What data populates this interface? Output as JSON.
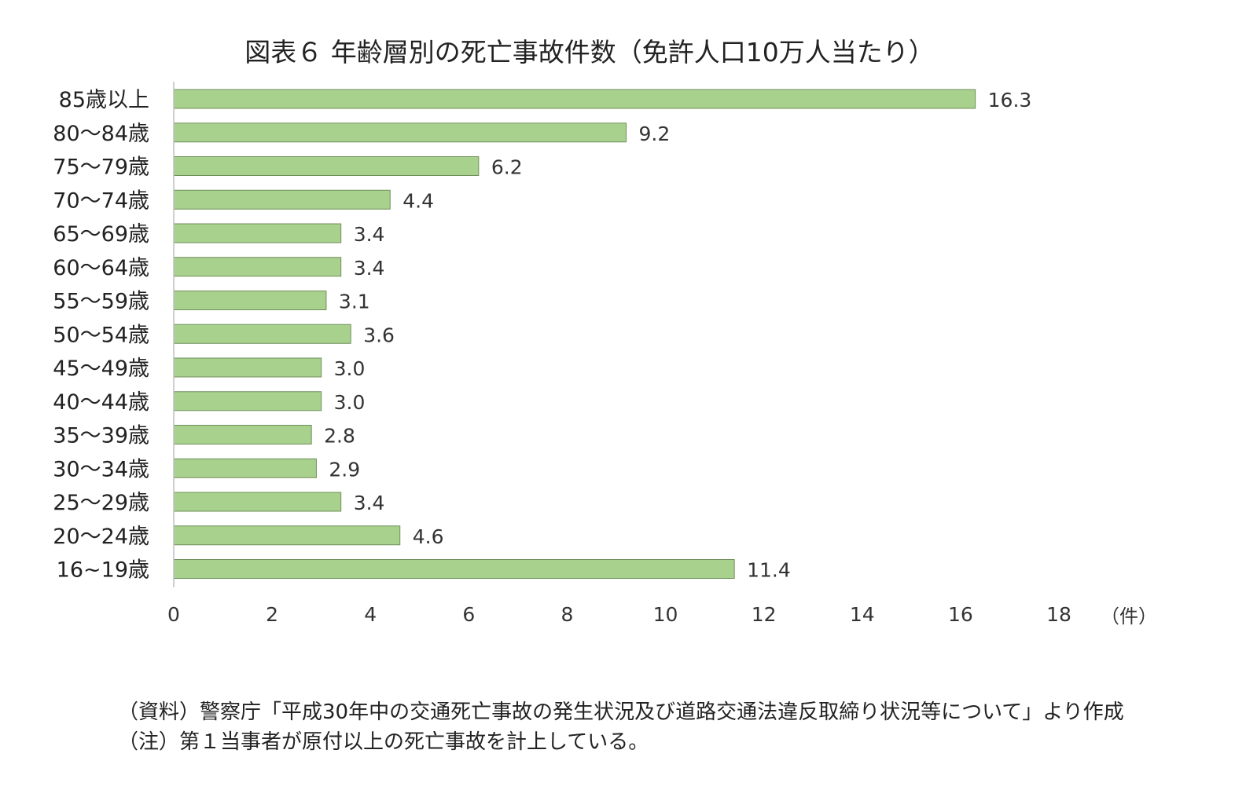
{
  "chart_data": {
    "type": "bar",
    "orientation": "horizontal",
    "title": "図表６ 年齢層別の死亡事故件数（免許人口10万人当たり）",
    "categories": [
      "85歳以上",
      "80～84歳",
      "75～79歳",
      "70～74歳",
      "65～69歳",
      "60～64歳",
      "55～59歳",
      "50～54歳",
      "45～49歳",
      "40～44歳",
      "35～39歳",
      "30～34歳",
      "25～29歳",
      "20～24歳",
      "16~19歳"
    ],
    "values": [
      16.3,
      9.2,
      6.2,
      4.4,
      3.4,
      3.4,
      3.1,
      3.6,
      3.0,
      3.0,
      2.8,
      2.9,
      3.4,
      4.6,
      11.4
    ],
    "value_labels": [
      "16.3",
      "9.2",
      "6.2",
      "4.4",
      "3.4",
      "3.4",
      "3.1",
      "3.6",
      "3.0",
      "3.0",
      "2.8",
      "2.9",
      "3.4",
      "4.6",
      "11.4"
    ],
    "x_ticks": [
      "0",
      "2",
      "4",
      "6",
      "8",
      "10",
      "12",
      "14",
      "16",
      "18"
    ],
    "xlim": [
      0,
      18
    ],
    "unit_label": "（件）",
    "grid": false,
    "bar_color": "#a9d18e",
    "bar_edge_color": "#6f8f5a"
  },
  "notes": [
    "（資料）警察庁「平成30年中の交通死亡事故の発生状況及び道路交通法違反取締り状況等について」より作成",
    "（注）第１当事者が原付以上の死亡事故を計上している。"
  ]
}
